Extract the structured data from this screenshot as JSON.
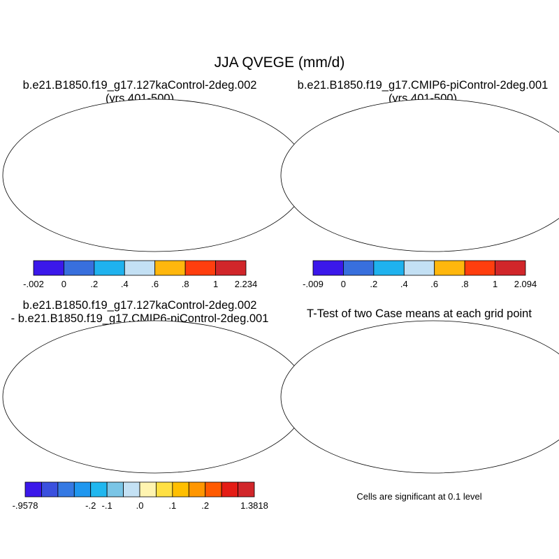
{
  "figure": {
    "title": "JJA QVEGE (mm/d)",
    "colors": {
      "ocean": "#ffffff",
      "outline": "#000000"
    }
  },
  "chart_data": [
    {
      "type": "heatmap",
      "panel": "top-left",
      "title_line1": "b.e21.B1850.f19_g17.127kaControl-2deg.002",
      "title_line2": "(yrs 401-500)",
      "projection": "Robinson world map",
      "colorbar": {
        "tick_labels": [
          "-.002",
          "0",
          ".2",
          ".4",
          ".6",
          ".8",
          "1",
          "2.234"
        ],
        "min": -0.002,
        "max": 2.234,
        "colors": [
          "#3b18ea",
          "#386fdd",
          "#1fb2ee",
          "#c3e0f4",
          "#ffb70d",
          "#ff3e0e",
          "#d1262a"
        ]
      }
    },
    {
      "type": "heatmap",
      "panel": "top-right",
      "title_line1": "b.e21.B1850.f19_g17.CMIP6-piControl-2deg.001",
      "title_line2": "(yrs 401-500)",
      "projection": "Robinson world map",
      "colorbar": {
        "tick_labels": [
          "-.009",
          "0",
          ".2",
          ".4",
          ".6",
          ".8",
          "1",
          "2.094"
        ],
        "min": -0.009,
        "max": 2.094,
        "colors": [
          "#3b18ea",
          "#386fdd",
          "#1fb2ee",
          "#c3e0f4",
          "#ffb70d",
          "#ff3e0e",
          "#d1262a"
        ]
      }
    },
    {
      "type": "heatmap",
      "panel": "bottom-left",
      "title_line1": "b.e21.B1850.f19_g17.127kaControl-2deg.002",
      "title_line2": "- b.e21.B1850.f19_g17.CMIP6-piControl-2deg.001",
      "projection": "Robinson world map",
      "colorbar": {
        "tick_labels": [
          "-.9578",
          "-.2",
          "-.1",
          ".0",
          ".1",
          ".2",
          "1.3818"
        ],
        "min": -0.9578,
        "max": 1.3818,
        "colors": [
          "#3b18ea",
          "#3a50de",
          "#3579e3",
          "#1f97ef",
          "#20b7ef",
          "#7ac5e6",
          "#c4e1f4",
          "#fff4b0",
          "#ffe044",
          "#ffbf00",
          "#ff9600",
          "#ff5a00",
          "#e41c15",
          "#d1262a"
        ]
      }
    },
    {
      "type": "heatmap",
      "panel": "bottom-right",
      "title": "T-Test of two Case means at each grid point",
      "projection": "Robinson world map",
      "significance_color": "#ee0000",
      "note": "Cells are significant at 0.1 level"
    }
  ]
}
